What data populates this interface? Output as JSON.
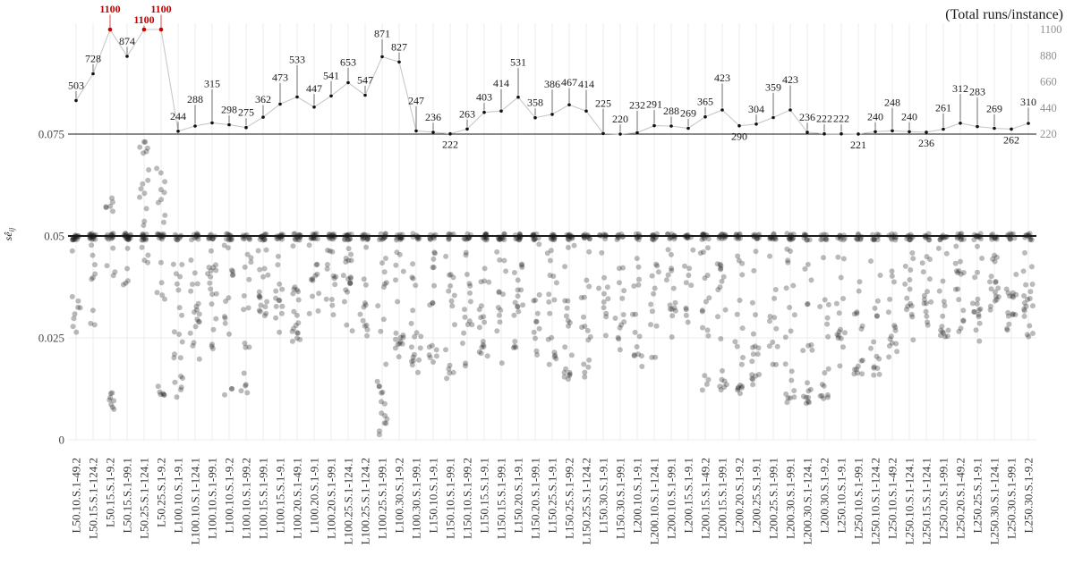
{
  "page": {
    "background": "#ffffff"
  },
  "chart_data": {
    "type": "scatter",
    "title": "(Total runs/instance)",
    "ylabel_main": "sê",
    "ylabel_sub": "ij",
    "se_axis": {
      "range": [
        0,
        0.078
      ],
      "ticks": [
        {
          "v": 0.075,
          "label": "0.075"
        },
        {
          "v": 0.05,
          "label": "0.05"
        },
        {
          "v": 0.025,
          "label": "0.025"
        },
        {
          "v": 0,
          "label": "0"
        }
      ]
    },
    "runs_axis": {
      "range": [
        220,
        1100
      ],
      "ticks": [
        1100,
        880,
        660,
        440,
        220
      ]
    },
    "cap_line": 0.05,
    "sep_line": 0.075,
    "grid": "on",
    "legend": "none",
    "colors": {
      "flag_red": "#cc0000",
      "runs_line": "#c8c8c8",
      "runs_point": "#111111",
      "scatter_point": "#1a1a1a",
      "grid": "#e8e8e8",
      "heavy_line": "#1a1a1a",
      "axis_text": "#4a4a4a",
      "right_axis_text": "#909090",
      "x_label_text": "#383838",
      "number_text": "#1a1a1a"
    },
    "instances": [
      {
        "label": "L50.10.S.1-49.2",
        "runs": 503,
        "cap": 15,
        "bands": [
          [
            0.026,
            0.048,
            9
          ]
        ]
      },
      {
        "label": "L50.15.S.1-124.2",
        "runs": 728,
        "cap": 17,
        "bands": [
          [
            0.027,
            0.048,
            9
          ]
        ]
      },
      {
        "label": "L50.15.S.1-9.2",
        "runs": 1100,
        "red": true,
        "cap": 12,
        "bands": [
          [
            0.056,
            0.06,
            6
          ],
          [
            0.04,
            0.048,
            4
          ],
          [
            0.007,
            0.012,
            8
          ]
        ]
      },
      {
        "label": "L50.15.S.1-99.1",
        "runs": 874,
        "cap": 18,
        "bands": [
          [
            0.038,
            0.048,
            5
          ]
        ]
      },
      {
        "label": "L50.25.S.1-124.1",
        "runs": 1100,
        "red": true,
        "ldy": -7,
        "cap": 12,
        "bands": [
          [
            0.051,
            0.075,
            15
          ],
          [
            0.043,
            0.048,
            4
          ]
        ]
      },
      {
        "label": "L50.25.S.1-9.2",
        "runs": 1100,
        "red": true,
        "cap": 12,
        "bands": [
          [
            0.051,
            0.068,
            9
          ],
          [
            0.03,
            0.048,
            5
          ],
          [
            0.009,
            0.014,
            6
          ]
        ]
      },
      {
        "label": "L100.10.S.1-9.1",
        "runs": 244,
        "cap": 8,
        "bands": [
          [
            0.012,
            0.048,
            15
          ],
          [
            0.01,
            0.016,
            5
          ]
        ]
      },
      {
        "label": "L100.10.S.1-124.1",
        "runs": 288,
        "ldy": -26,
        "cap": 10,
        "bands": [
          [
            0.018,
            0.048,
            14
          ],
          [
            0.029,
            0.034,
            4
          ]
        ]
      },
      {
        "label": "L100.10.S.1-99.1",
        "runs": 315,
        "ldy": -40,
        "cap": 9,
        "bands": [
          [
            0.022,
            0.048,
            14
          ],
          [
            0.038,
            0.043,
            4
          ]
        ]
      },
      {
        "label": "L100.10.S.1-9.2",
        "runs": 298,
        "cap": 11,
        "bands": [
          [
            0.024,
            0.048,
            12
          ],
          [
            0.011,
            0.013,
            3
          ]
        ]
      },
      {
        "label": "L100.10.S.1-99.2",
        "runs": 275,
        "cap": 9,
        "bands": [
          [
            0.014,
            0.048,
            12
          ],
          [
            0.011,
            0.014,
            4
          ]
        ]
      },
      {
        "label": "L100.15.S.1-99.1",
        "runs": 362,
        "ldy": -16,
        "cap": 12,
        "bands": [
          [
            0.028,
            0.048,
            13
          ],
          [
            0.032,
            0.036,
            4
          ]
        ]
      },
      {
        "label": "L100.15.S.1-9.1",
        "runs": 473,
        "ldy": -26,
        "cap": 12,
        "bands": [
          [
            0.025,
            0.048,
            13
          ]
        ]
      },
      {
        "label": "L100.20.S.1-49.1",
        "runs": 533,
        "ldy": -38,
        "cap": 13,
        "bands": [
          [
            0.022,
            0.048,
            14
          ],
          [
            0.027,
            0.031,
            4
          ]
        ]
      },
      {
        "label": "L100.20.S.1-9.1",
        "runs": 447,
        "ldy": -17,
        "cap": 12,
        "bands": [
          [
            0.03,
            0.048,
            12
          ]
        ]
      },
      {
        "label": "L100.20.S.1-99.1",
        "runs": 541,
        "ldy": -19,
        "cap": 13,
        "bands": [
          [
            0.028,
            0.048,
            13
          ]
        ]
      },
      {
        "label": "L100.25.S.1-124.1",
        "runs": 653,
        "ldy": -19,
        "cap": 13,
        "bands": [
          [
            0.025,
            0.048,
            14
          ],
          [
            0.036,
            0.041,
            4
          ]
        ]
      },
      {
        "label": "L100.25.S.1-124.2",
        "runs": 547,
        "cap": 12,
        "bands": [
          [
            0.024,
            0.048,
            12
          ]
        ]
      },
      {
        "label": "L100.25.S.1-99.1",
        "runs": 871,
        "ldy": -22,
        "cap": 10,
        "bands": [
          [
            0.008,
            0.048,
            16
          ],
          [
            0.001,
            0.012,
            8
          ]
        ]
      },
      {
        "label": "L100.30.S.1-9.2",
        "runs": 827,
        "cap": 12,
        "bands": [
          [
            0.02,
            0.048,
            12
          ],
          [
            0.022,
            0.026,
            5
          ]
        ]
      },
      {
        "label": "L100.30.S.1-99.1",
        "runs": 247,
        "ldy": -30,
        "cap": 8,
        "bands": [
          [
            0.016,
            0.048,
            13
          ],
          [
            0.018,
            0.023,
            5
          ]
        ]
      },
      {
        "label": "L150.10.S.1-9.1",
        "runs": 236,
        "cap": 8,
        "bands": [
          [
            0.015,
            0.046,
            12
          ],
          [
            0.02,
            0.024,
            4
          ]
        ]
      },
      {
        "label": "L150.10.S.1-99.1",
        "runs": 222,
        "below": true,
        "cap": 7,
        "bands": [
          [
            0.013,
            0.045,
            12
          ],
          [
            0.015,
            0.019,
            4
          ]
        ]
      },
      {
        "label": "L150.10.S.1-99.2",
        "runs": 263,
        "cap": 9,
        "bands": [
          [
            0.017,
            0.047,
            12
          ],
          [
            0.025,
            0.03,
            4
          ]
        ]
      },
      {
        "label": "L150.15.S.1-9.1",
        "runs": 403,
        "cap": 12,
        "bands": [
          [
            0.02,
            0.048,
            13
          ],
          [
            0.021,
            0.025,
            4
          ]
        ]
      },
      {
        "label": "L150.15.S.1-99.1",
        "runs": 414,
        "ldy": -27,
        "cap": 12,
        "bands": [
          [
            0.018,
            0.048,
            13
          ]
        ]
      },
      {
        "label": "L150.20.S.1-9.1",
        "runs": 531,
        "ldy": -35,
        "cap": 13,
        "bands": [
          [
            0.022,
            0.048,
            14
          ],
          [
            0.03,
            0.035,
            4
          ]
        ]
      },
      {
        "label": "L150.20.S.1-99.1",
        "runs": 358,
        "cap": 11,
        "bands": [
          [
            0.02,
            0.048,
            12
          ]
        ]
      },
      {
        "label": "L150.25.S.1-9.1",
        "runs": 386,
        "ldy": -30,
        "cap": 11,
        "bands": [
          [
            0.016,
            0.048,
            13
          ],
          [
            0.018,
            0.022,
            4
          ]
        ]
      },
      {
        "label": "L150.25.S.1-99.2",
        "runs": 467,
        "ldy": -21,
        "cap": 12,
        "bands": [
          [
            0.013,
            0.048,
            14
          ],
          [
            0.014,
            0.017,
            5
          ]
        ]
      },
      {
        "label": "L150.25.S.1-124.2",
        "runs": 414,
        "ldy": -26,
        "cap": 11,
        "bands": [
          [
            0.015,
            0.048,
            12
          ],
          [
            0.016,
            0.02,
            4
          ]
        ]
      },
      {
        "label": "L150.30.S.1-9.1",
        "runs": 225,
        "ldy": -30,
        "cap": 8,
        "bands": [
          [
            0.02,
            0.046,
            11
          ]
        ]
      },
      {
        "label": "L150.30.S.1-99.1",
        "runs": 220,
        "cap": 8,
        "bands": [
          [
            0.022,
            0.046,
            10
          ],
          [
            0.028,
            0.032,
            3
          ]
        ]
      },
      {
        "label": "L200.10.S.1-9.1",
        "runs": 232,
        "ldy": -27,
        "cap": 8,
        "bands": [
          [
            0.017,
            0.046,
            11
          ],
          [
            0.019,
            0.023,
            4
          ]
        ]
      },
      {
        "label": "L200.10.S.1-124.1",
        "runs": 291,
        "ldy": -20,
        "cap": 10,
        "bands": [
          [
            0.02,
            0.047,
            12
          ]
        ]
      },
      {
        "label": "L200.10.S.1-99.1",
        "runs": 288,
        "cap": 10,
        "bands": [
          [
            0.024,
            0.047,
            11
          ],
          [
            0.031,
            0.035,
            4
          ]
        ]
      },
      {
        "label": "L200.15.S.1-9.1",
        "runs": 269,
        "cap": 9,
        "bands": [
          [
            0.027,
            0.047,
            10
          ]
        ]
      },
      {
        "label": "L200.15.S.1-49.2",
        "runs": 365,
        "cap": 11,
        "bands": [
          [
            0.022,
            0.048,
            12
          ],
          [
            0.012,
            0.016,
            4
          ]
        ]
      },
      {
        "label": "L200.15.S.1-99.1",
        "runs": 423,
        "ldy": -32,
        "cap": 12,
        "bands": [
          [
            0.01,
            0.048,
            13
          ],
          [
            0.011,
            0.015,
            6
          ]
        ]
      },
      {
        "label": "L200.20.S.1-9.2",
        "runs": 290,
        "below": true,
        "cap": 9,
        "bands": [
          [
            0.01,
            0.046,
            12
          ],
          [
            0.011,
            0.014,
            6
          ]
        ]
      },
      {
        "label": "L200.25.S.1-9.1",
        "runs": 304,
        "cap": 10,
        "bands": [
          [
            0.012,
            0.047,
            12
          ],
          [
            0.013,
            0.016,
            5
          ]
        ]
      },
      {
        "label": "L200.25.S.1-99.1",
        "runs": 359,
        "ldy": -30,
        "cap": 11,
        "bands": [
          [
            0.018,
            0.048,
            12
          ]
        ]
      },
      {
        "label": "L200.30.S.1-99.1",
        "runs": 423,
        "ldy": -30,
        "cap": 12,
        "bands": [
          [
            0.009,
            0.048,
            13
          ],
          [
            0.009,
            0.013,
            6
          ]
        ]
      },
      {
        "label": "L200.30.S.1-124.1",
        "runs": 236,
        "cap": 8,
        "bands": [
          [
            0.008,
            0.045,
            12
          ],
          [
            0.009,
            0.012,
            6
          ]
        ]
      },
      {
        "label": "L200.30.S.1-9.2",
        "runs": 222,
        "cap": 8,
        "bands": [
          [
            0.01,
            0.045,
            11
          ],
          [
            0.01,
            0.013,
            5
          ]
        ]
      },
      {
        "label": "L250.10.S.1-9.1",
        "runs": 222,
        "cap": 8,
        "bands": [
          [
            0.018,
            0.046,
            11
          ],
          [
            0.024,
            0.028,
            4
          ]
        ]
      },
      {
        "label": "L250.10.S.1-99.1",
        "runs": 221,
        "below": true,
        "cap": 8,
        "bands": [
          [
            0.015,
            0.045,
            11
          ],
          [
            0.016,
            0.02,
            4
          ]
        ]
      },
      {
        "label": "L250.10.S.1-124.2",
        "runs": 240,
        "cap": 9,
        "bands": [
          [
            0.014,
            0.046,
            11
          ],
          [
            0.015,
            0.018,
            4
          ]
        ]
      },
      {
        "label": "L250.10.S.1-49.2",
        "runs": 248,
        "ldy": -28,
        "cap": 9,
        "bands": [
          [
            0.02,
            0.047,
            11
          ],
          [
            0.022,
            0.026,
            4
          ]
        ]
      },
      {
        "label": "L250.10.S.1-124.1",
        "runs": 240,
        "cap": 9,
        "bands": [
          [
            0.024,
            0.047,
            11
          ],
          [
            0.03,
            0.034,
            4
          ]
        ]
      },
      {
        "label": "L250.15.S.1-124.1",
        "runs": 236,
        "below": true,
        "cap": 8,
        "bands": [
          [
            0.026,
            0.047,
            11
          ],
          [
            0.033,
            0.037,
            4
          ]
        ]
      },
      {
        "label": "L250.20.S.1-99.1",
        "runs": 261,
        "ldy": -20,
        "cap": 9,
        "bands": [
          [
            0.022,
            0.047,
            11
          ],
          [
            0.024,
            0.028,
            4
          ]
        ]
      },
      {
        "label": "L250.20.S.1-49.2",
        "runs": 312,
        "ldy": -35,
        "cap": 10,
        "bands": [
          [
            0.026,
            0.048,
            12
          ],
          [
            0.04,
            0.044,
            4
          ]
        ]
      },
      {
        "label": "L250.25.S.1-9.1",
        "runs": 283,
        "ldy": -35,
        "cap": 10,
        "bands": [
          [
            0.024,
            0.048,
            12
          ],
          [
            0.03,
            0.034,
            4
          ]
        ]
      },
      {
        "label": "L250.30.S.1-124.1",
        "runs": 269,
        "ldy": -18,
        "cap": 9,
        "bands": [
          [
            0.028,
            0.048,
            12
          ],
          [
            0.035,
            0.04,
            5
          ]
        ]
      },
      {
        "label": "L250.30.S.1-99.1",
        "runs": 262,
        "below": true,
        "cap": 9,
        "bands": [
          [
            0.022,
            0.047,
            12
          ],
          [
            0.027,
            0.031,
            4
          ]
        ]
      },
      {
        "label": "L250.30.S.1-9.2",
        "runs": 310,
        "ldy": -20,
        "cap": 10,
        "bands": [
          [
            0.024,
            0.048,
            13
          ],
          [
            0.03,
            0.038,
            6
          ]
        ]
      }
    ]
  }
}
